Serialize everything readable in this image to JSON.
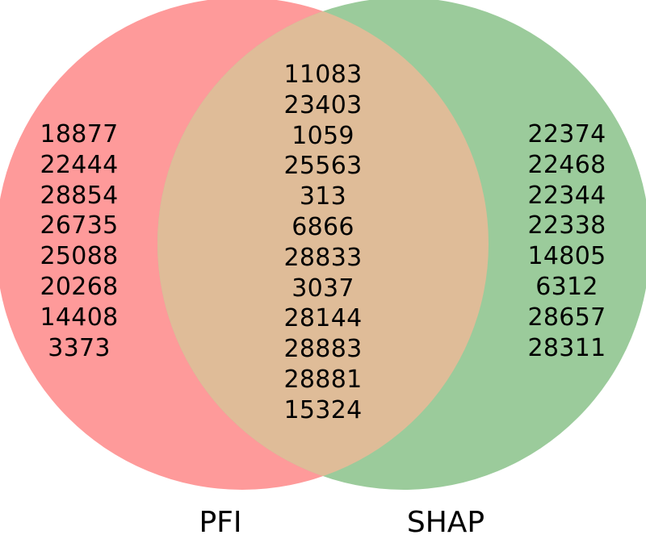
{
  "venn": {
    "sets": [
      {
        "label": "PFI",
        "color": "#fe9a9a",
        "only": [
          "18877",
          "22444",
          "28854",
          "26735",
          "25088",
          "20268",
          "14408",
          "3373"
        ]
      },
      {
        "label": "SHAP",
        "color": "#9bcb9b",
        "only": [
          "22374",
          "22468",
          "22344",
          "22338",
          "14805",
          "6312",
          "28657",
          "28311"
        ]
      }
    ],
    "intersection_color": "#dfbc98",
    "intersection": [
      "11083",
      "23403",
      "1059",
      "25563",
      "313",
      "6866",
      "28833",
      "3037",
      "28144",
      "28883",
      "28881",
      "15324"
    ]
  }
}
